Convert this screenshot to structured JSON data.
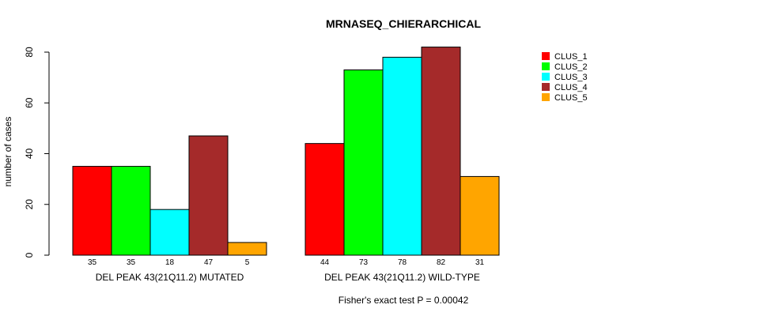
{
  "chart_data": {
    "type": "bar",
    "title": "MRNASEQ_CHIERARCHICAL",
    "ylabel": "number of cases",
    "ylim": [
      0,
      80
    ],
    "yticks": [
      0,
      20,
      40,
      60,
      80
    ],
    "footer": "Fisher's exact test P = 0.00042",
    "groups": [
      {
        "label": "DEL PEAK 43(21Q11.2) MUTATED",
        "values": [
          35,
          35,
          18,
          47,
          5
        ]
      },
      {
        "label": "DEL PEAK 43(21Q11.2) WILD-TYPE",
        "values": [
          44,
          73,
          78,
          82,
          31
        ]
      }
    ],
    "series": [
      {
        "name": "CLUS_1",
        "color": "#ff0000"
      },
      {
        "name": "CLUS_2",
        "color": "#00ff00"
      },
      {
        "name": "CLUS_3",
        "color": "#00ffff"
      },
      {
        "name": "CLUS_4",
        "color": "#a52a2a"
      },
      {
        "name": "CLUS_5",
        "color": "#ffa500"
      }
    ]
  }
}
